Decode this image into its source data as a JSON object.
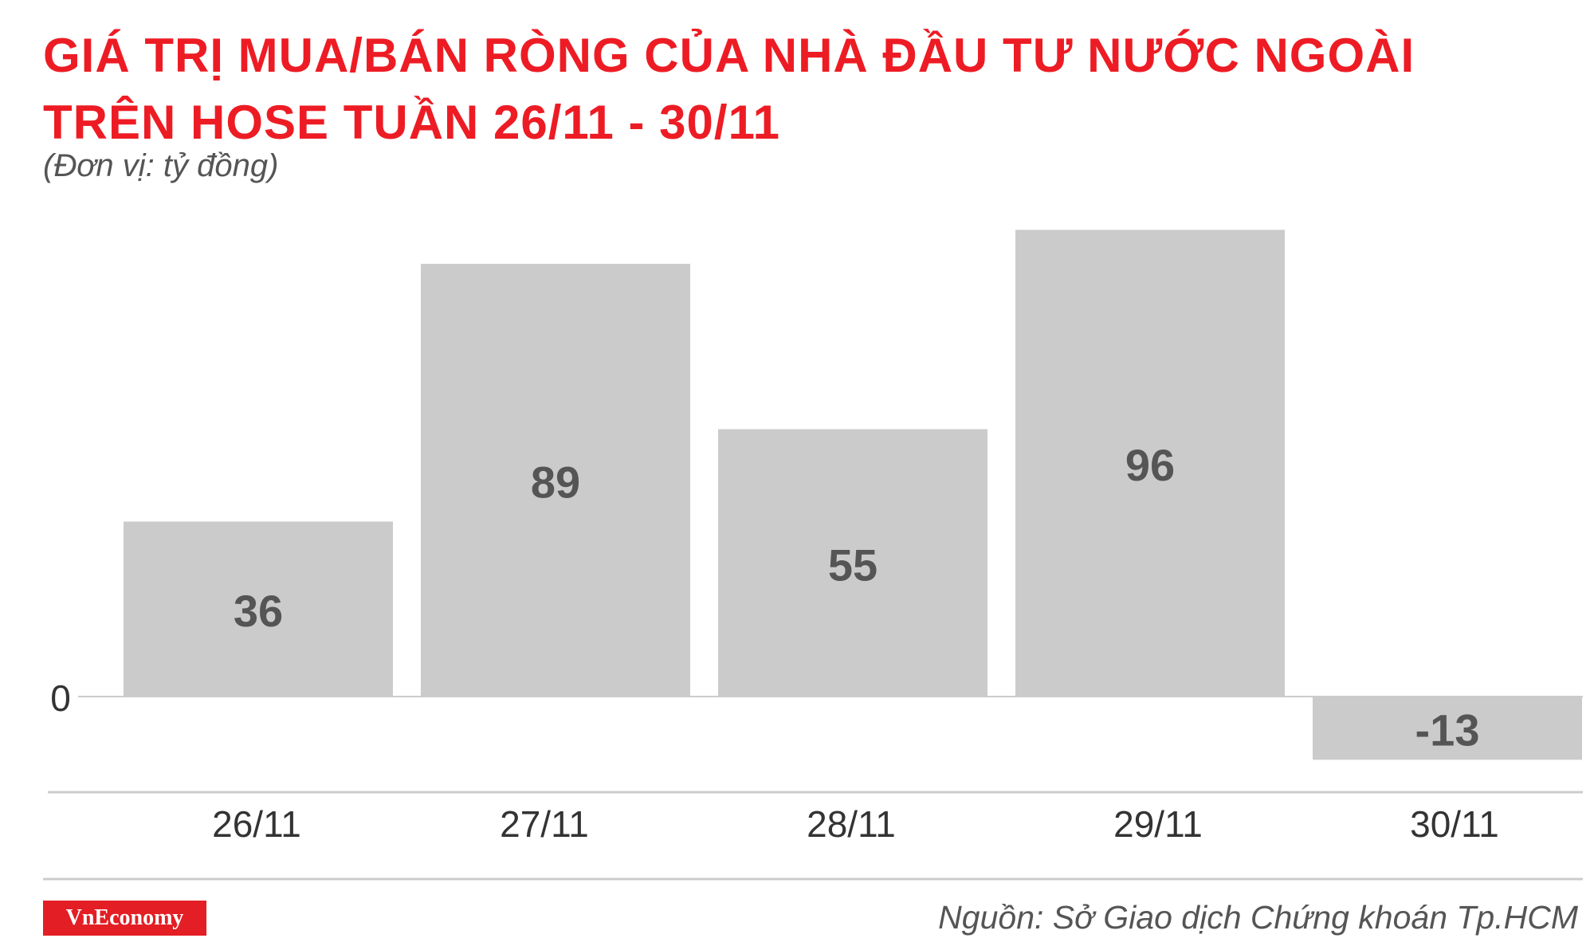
{
  "title": {
    "line1": "GIÁ TRỊ MUA/BÁN RÒNG CỦA NHÀ ĐẦU TƯ NƯỚC NGOÀI",
    "line2": "TRÊN HOSE TUẦN 26/11 - 30/11"
  },
  "unit": "(Đơn vị: tỷ đồng)",
  "brand": "VnEconomy",
  "source": "Nguồn: Sở Giao dịch Chứng khoán Tp.HCM",
  "colors": {
    "title": "#ed1c24",
    "bar": "#cccbcc",
    "value_label": "#555555",
    "axis": "#cccccc",
    "brand_bg": "#e31e24"
  },
  "chart_data": {
    "type": "bar",
    "title": "GIÁ TRỊ MUA/BÁN RÒNG CỦA NHÀ ĐẦU TƯ NƯỚC NGOÀI TRÊN HOSE TUẦN 26/11 - 30/11",
    "ylabel": "(Đơn vị: tỷ đồng)",
    "categories": [
      "26/11",
      "27/11",
      "28/11",
      "29/11",
      "30/11"
    ],
    "values": [
      36,
      89,
      55,
      96,
      -13
    ],
    "value_labels": [
      "36",
      "89",
      "55",
      "96",
      "-13"
    ],
    "yticks": [
      "0"
    ],
    "ylim": [
      -20,
      100
    ],
    "grid": false,
    "legend": "none"
  }
}
